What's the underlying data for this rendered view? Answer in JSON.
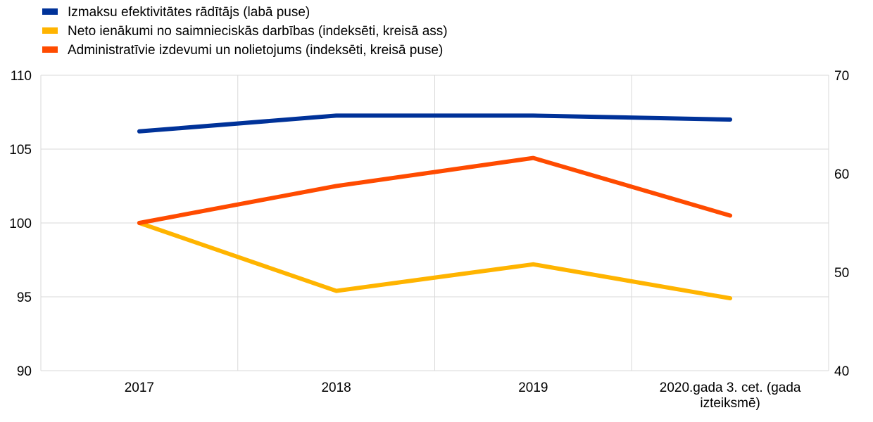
{
  "chart_data": {
    "type": "line",
    "categories": [
      "2017",
      "2018",
      "2019",
      "2020.gada 3. cet. (gada izteiksmē)"
    ],
    "category_lines": [
      [
        "2017"
      ],
      [
        "2018"
      ],
      [
        "2019"
      ],
      [
        "2020.gada 3. cet. (gada",
        "izteiksmē)"
      ]
    ],
    "left_axis": {
      "ylim": [
        90,
        110
      ],
      "ticks": [
        "90",
        "95",
        "100",
        "105",
        "110"
      ]
    },
    "right_axis": {
      "ylim": [
        40,
        70
      ],
      "ticks": [
        "40",
        "50",
        "60",
        "70"
      ]
    },
    "series": [
      {
        "name": "Izmaksu efektivitātes rādītājs (labā puse)",
        "axis": "right",
        "color": "#003299",
        "values": [
          64.3,
          65.9,
          65.9,
          65.5
        ]
      },
      {
        "name": "Neto ienākumi no saimnieciskās darbības (indeksēti, kreisā ass)",
        "axis": "left",
        "color": "#FFB400",
        "values": [
          100.0,
          95.4,
          97.2,
          94.9
        ]
      },
      {
        "name": "Administratīvie izdevumi un nolietojums (indeksēti, kreisā puse)",
        "axis": "left",
        "color": "#FF4B00",
        "values": [
          100.0,
          102.5,
          104.4,
          100.5
        ]
      }
    ],
    "grid": true,
    "legend_position": "top-left"
  }
}
